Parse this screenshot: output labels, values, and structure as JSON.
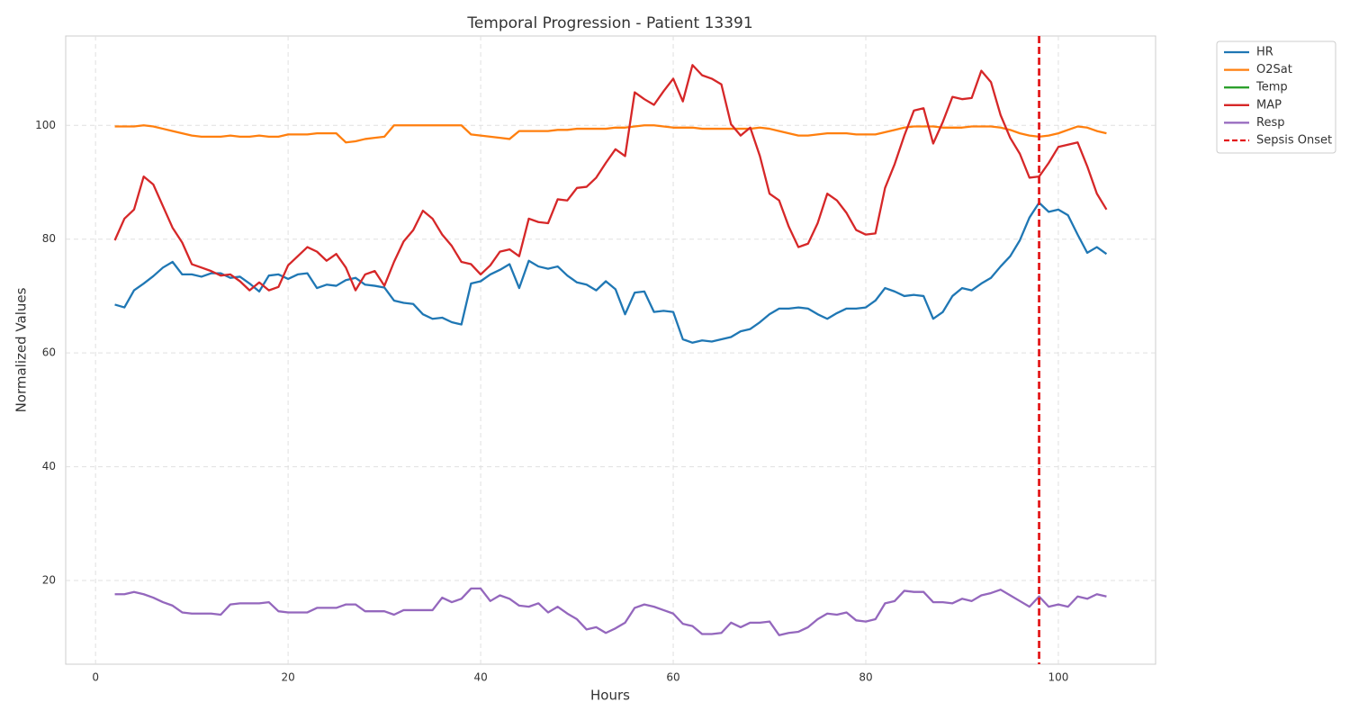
{
  "chart_data": {
    "type": "line",
    "title": "Temporal Progression - Patient 13391",
    "x_label": "Hours",
    "y_label": "Normalized Values",
    "x": [
      2,
      3,
      4,
      5,
      6,
      7,
      8,
      9,
      10,
      11,
      12,
      13,
      14,
      15,
      16,
      17,
      18,
      19,
      20,
      21,
      22,
      23,
      24,
      25,
      26,
      27,
      28,
      29,
      30,
      31,
      32,
      33,
      34,
      35,
      36,
      37,
      38,
      39,
      40,
      41,
      42,
      43,
      44,
      45,
      46,
      47,
      48,
      49,
      50,
      51,
      52,
      53,
      54,
      55,
      56,
      57,
      58,
      59,
      60,
      61,
      62,
      63,
      64,
      65,
      66,
      67,
      68,
      69,
      70,
      71,
      72,
      73,
      74,
      75,
      76,
      77,
      78,
      79,
      80,
      81,
      82,
      83,
      84,
      85,
      86,
      87,
      88,
      89,
      90,
      91,
      92,
      93,
      94,
      95,
      96,
      97,
      98,
      99,
      100,
      101,
      102,
      103,
      104,
      105
    ],
    "series": [
      {
        "name": "HR",
        "color": "#1f77b4",
        "values": [
          68.5,
          68,
          71,
          72.2,
          73.5,
          75,
          76,
          73.8,
          73.8,
          73.4,
          74,
          74,
          73.2,
          73.4,
          72.2,
          70.8,
          73.6,
          73.8,
          73,
          73.8,
          74,
          71.4,
          72,
          71.8,
          72.8,
          73.2,
          72,
          71.8,
          71.5,
          69.2,
          68.8,
          68.6,
          66.8,
          66,
          66.2,
          65.4,
          65,
          72.2,
          72.6,
          73.8,
          74.6,
          75.6,
          71.4,
          76.2,
          75.2,
          74.8,
          75.2,
          73.6,
          72.4,
          72,
          71,
          72.6,
          71.2,
          66.8,
          70.6,
          70.8,
          67.2,
          67.4,
          67.2,
          62.4,
          61.8,
          62.2,
          62,
          62.4,
          62.8,
          63.8,
          64.2,
          65.4,
          66.8,
          67.8,
          67.8,
          68,
          67.8,
          66.8,
          66,
          67,
          67.8,
          67.8,
          68,
          69.2,
          71.4,
          70.8,
          70,
          70.2,
          70,
          66,
          67.2,
          70,
          71.4,
          71,
          72.2,
          73.2,
          75.2,
          77,
          79.8,
          83.8,
          86.4,
          84.8,
          85.2,
          84.2,
          80.8,
          77.6,
          78.6,
          77.4
        ]
      },
      {
        "name": "O2Sat",
        "color": "#ff7f0e",
        "values": [
          99.8,
          99.8,
          99.8,
          100,
          99.8,
          99.4,
          99,
          98.6,
          98.2,
          98,
          98,
          98,
          98.2,
          98,
          98,
          98.2,
          98,
          98,
          98.4,
          98.4,
          98.4,
          98.6,
          98.6,
          98.6,
          97,
          97.2,
          97.6,
          97.8,
          98,
          100,
          100,
          100,
          100,
          100,
          100,
          100,
          100,
          98.4,
          98.2,
          98,
          97.8,
          97.6,
          99,
          99,
          99,
          99,
          99.2,
          99.2,
          99.4,
          99.4,
          99.4,
          99.4,
          99.6,
          99.6,
          99.8,
          100,
          100,
          99.8,
          99.6,
          99.6,
          99.6,
          99.4,
          99.4,
          99.4,
          99.4,
          99.4,
          99.4,
          99.6,
          99.4,
          99,
          98.6,
          98.2,
          98.2,
          98.4,
          98.6,
          98.6,
          98.6,
          98.4,
          98.4,
          98.4,
          98.8,
          99.2,
          99.6,
          99.8,
          99.8,
          99.8,
          99.6,
          99.6,
          99.6,
          99.8,
          99.8,
          99.8,
          99.6,
          99.2,
          98.6,
          98.2,
          98,
          98.2,
          98.6,
          99.2,
          99.8,
          99.6,
          99,
          98.6
        ]
      },
      {
        "name": "Temp",
        "color": "#2ca02c",
        "values": [
          null,
          null,
          null,
          null,
          null,
          null,
          null,
          null,
          null,
          null,
          null,
          null,
          null,
          null,
          null,
          null,
          null,
          null,
          null,
          null,
          null,
          null,
          null,
          null,
          null,
          null,
          null,
          null,
          null,
          null,
          null,
          null,
          null,
          null,
          null,
          null,
          null,
          null,
          null,
          null,
          null,
          null,
          null,
          null,
          null,
          null,
          null,
          null,
          null,
          null,
          null,
          null,
          null,
          null,
          null,
          null,
          null,
          null,
          null,
          null,
          null,
          null,
          null,
          null,
          null,
          null,
          null,
          null,
          null,
          null,
          null,
          null,
          null,
          null,
          null,
          null,
          null,
          null,
          null,
          null,
          null,
          null,
          null,
          null,
          null,
          null,
          null,
          null,
          null,
          null,
          null,
          null,
          null,
          null,
          null,
          null,
          null,
          null,
          null,
          null,
          null,
          null,
          null,
          null
        ]
      },
      {
        "name": "MAP",
        "color": "#d62728",
        "values": [
          79.8,
          83.6,
          85.2,
          91,
          89.6,
          85.8,
          82,
          79.4,
          75.6,
          75,
          74.4,
          73.6,
          73.8,
          72.6,
          71,
          72.4,
          71,
          71.6,
          75.4,
          77,
          78.6,
          77.8,
          76.2,
          77.4,
          75,
          71,
          73.8,
          74.4,
          71.8,
          76,
          79.6,
          81.6,
          85,
          83.6,
          80.8,
          78.8,
          76,
          75.6,
          73.8,
          75.4,
          77.8,
          78.2,
          77,
          83.6,
          83,
          82.8,
          87,
          86.8,
          89,
          89.2,
          90.8,
          93.4,
          95.8,
          94.6,
          105.8,
          104.6,
          103.6,
          106,
          108.2,
          104.2,
          110.6,
          108.8,
          108.2,
          107.2,
          100.2,
          98.2,
          99.6,
          94.6,
          88,
          86.8,
          82.2,
          78.6,
          79.2,
          82.8,
          88,
          86.8,
          84.6,
          81.6,
          80.8,
          81,
          89,
          93.2,
          98.2,
          102.6,
          103,
          96.8,
          100.6,
          105,
          104.6,
          104.8,
          109.6,
          107.6,
          101.8,
          97.8,
          95,
          90.8,
          91,
          93.4,
          96.2,
          96.6,
          97,
          92.8,
          88,
          85.2
        ]
      },
      {
        "name": "Resp",
        "color": "#9467bd",
        "values": [
          17.6,
          17.6,
          18,
          17.6,
          17,
          16.2,
          15.6,
          14.4,
          14.2,
          14.2,
          14.2,
          14,
          15.8,
          16,
          16,
          16,
          16.2,
          14.6,
          14.4,
          14.4,
          14.4,
          15.2,
          15.2,
          15.2,
          15.8,
          15.8,
          14.6,
          14.6,
          14.6,
          14,
          14.8,
          14.8,
          14.8,
          14.8,
          17,
          16.2,
          16.8,
          18.6,
          18.6,
          16.4,
          17.4,
          16.8,
          15.6,
          15.4,
          16,
          14.4,
          15.4,
          14.2,
          13.2,
          11.4,
          11.8,
          10.8,
          11.6,
          12.6,
          15.2,
          15.8,
          15.4,
          14.8,
          14.2,
          12.4,
          12,
          10.6,
          10.6,
          10.8,
          12.6,
          11.8,
          12.6,
          12.6,
          12.8,
          10.4,
          10.8,
          11,
          11.8,
          13.2,
          14.2,
          14,
          14.4,
          13,
          12.8,
          13.2,
          16,
          16.4,
          18.2,
          18,
          18,
          16.2,
          16.2,
          16,
          16.8,
          16.4,
          17.4,
          17.8,
          18.4,
          17.4,
          16.4,
          15.4,
          17.2,
          15.4,
          15.8,
          15.4,
          17.2,
          16.8,
          17.6,
          17.2
        ]
      }
    ],
    "vline": {
      "x": 98,
      "name": "Sepsis Onset",
      "color": "#e31a1c"
    },
    "xlim": [
      -3.1,
      110.1
    ],
    "xticks": [
      0,
      20,
      40,
      60,
      80,
      100
    ],
    "ylim": [
      5.3,
      115.7
    ],
    "yticks": [
      20,
      40,
      60,
      80,
      100
    ],
    "grid": true,
    "legend": "outside upper right"
  }
}
